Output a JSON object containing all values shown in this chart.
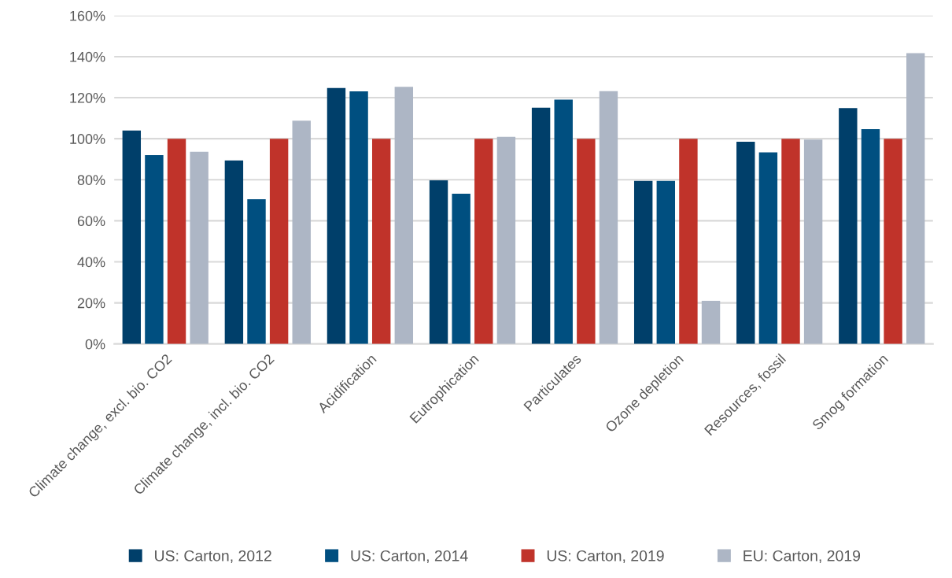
{
  "chart_data": {
    "type": "bar",
    "categories": [
      "Climate change, excl. bio. CO2",
      "Climate change, incl. bio. CO2",
      "Acidification",
      "Eutrophication",
      "Particulates",
      "Ozone depletion",
      "Resources, fossil",
      "Smog formation"
    ],
    "series": [
      {
        "name": "US: Carton, 2012",
        "color": "#003f6a",
        "values": [
          104,
          89.4,
          124.7,
          79.7,
          115.1,
          79.4,
          98.5,
          114.9
        ]
      },
      {
        "name": "US: Carton, 2014",
        "color": "#004f80",
        "values": [
          92,
          70.5,
          123.1,
          73.2,
          119.1,
          79.4,
          93.3,
          104.7
        ]
      },
      {
        "name": "US: Carton, 2019",
        "color": "#c0332a",
        "values": [
          100,
          100,
          100,
          100,
          100,
          100,
          100,
          100
        ]
      },
      {
        "name": "EU: Carton, 2019",
        "color": "#adb6c5",
        "values": [
          93.6,
          108.8,
          125.3,
          100.9,
          123.2,
          21.0,
          99.6,
          141.7
        ]
      }
    ],
    "ylim": [
      0,
      160
    ],
    "yticks": [
      {
        "value": 0,
        "label": "0%"
      },
      {
        "value": 20,
        "label": "20%"
      },
      {
        "value": 40,
        "label": "40%"
      },
      {
        "value": 60,
        "label": "60%"
      },
      {
        "value": 80,
        "label": "80%"
      },
      {
        "value": 100,
        "label": "100%"
      },
      {
        "value": 120,
        "label": "120%"
      },
      {
        "value": 140,
        "label": "140%"
      },
      {
        "value": 160,
        "label": "160%"
      }
    ],
    "grid": "y",
    "legend": "bottom"
  }
}
